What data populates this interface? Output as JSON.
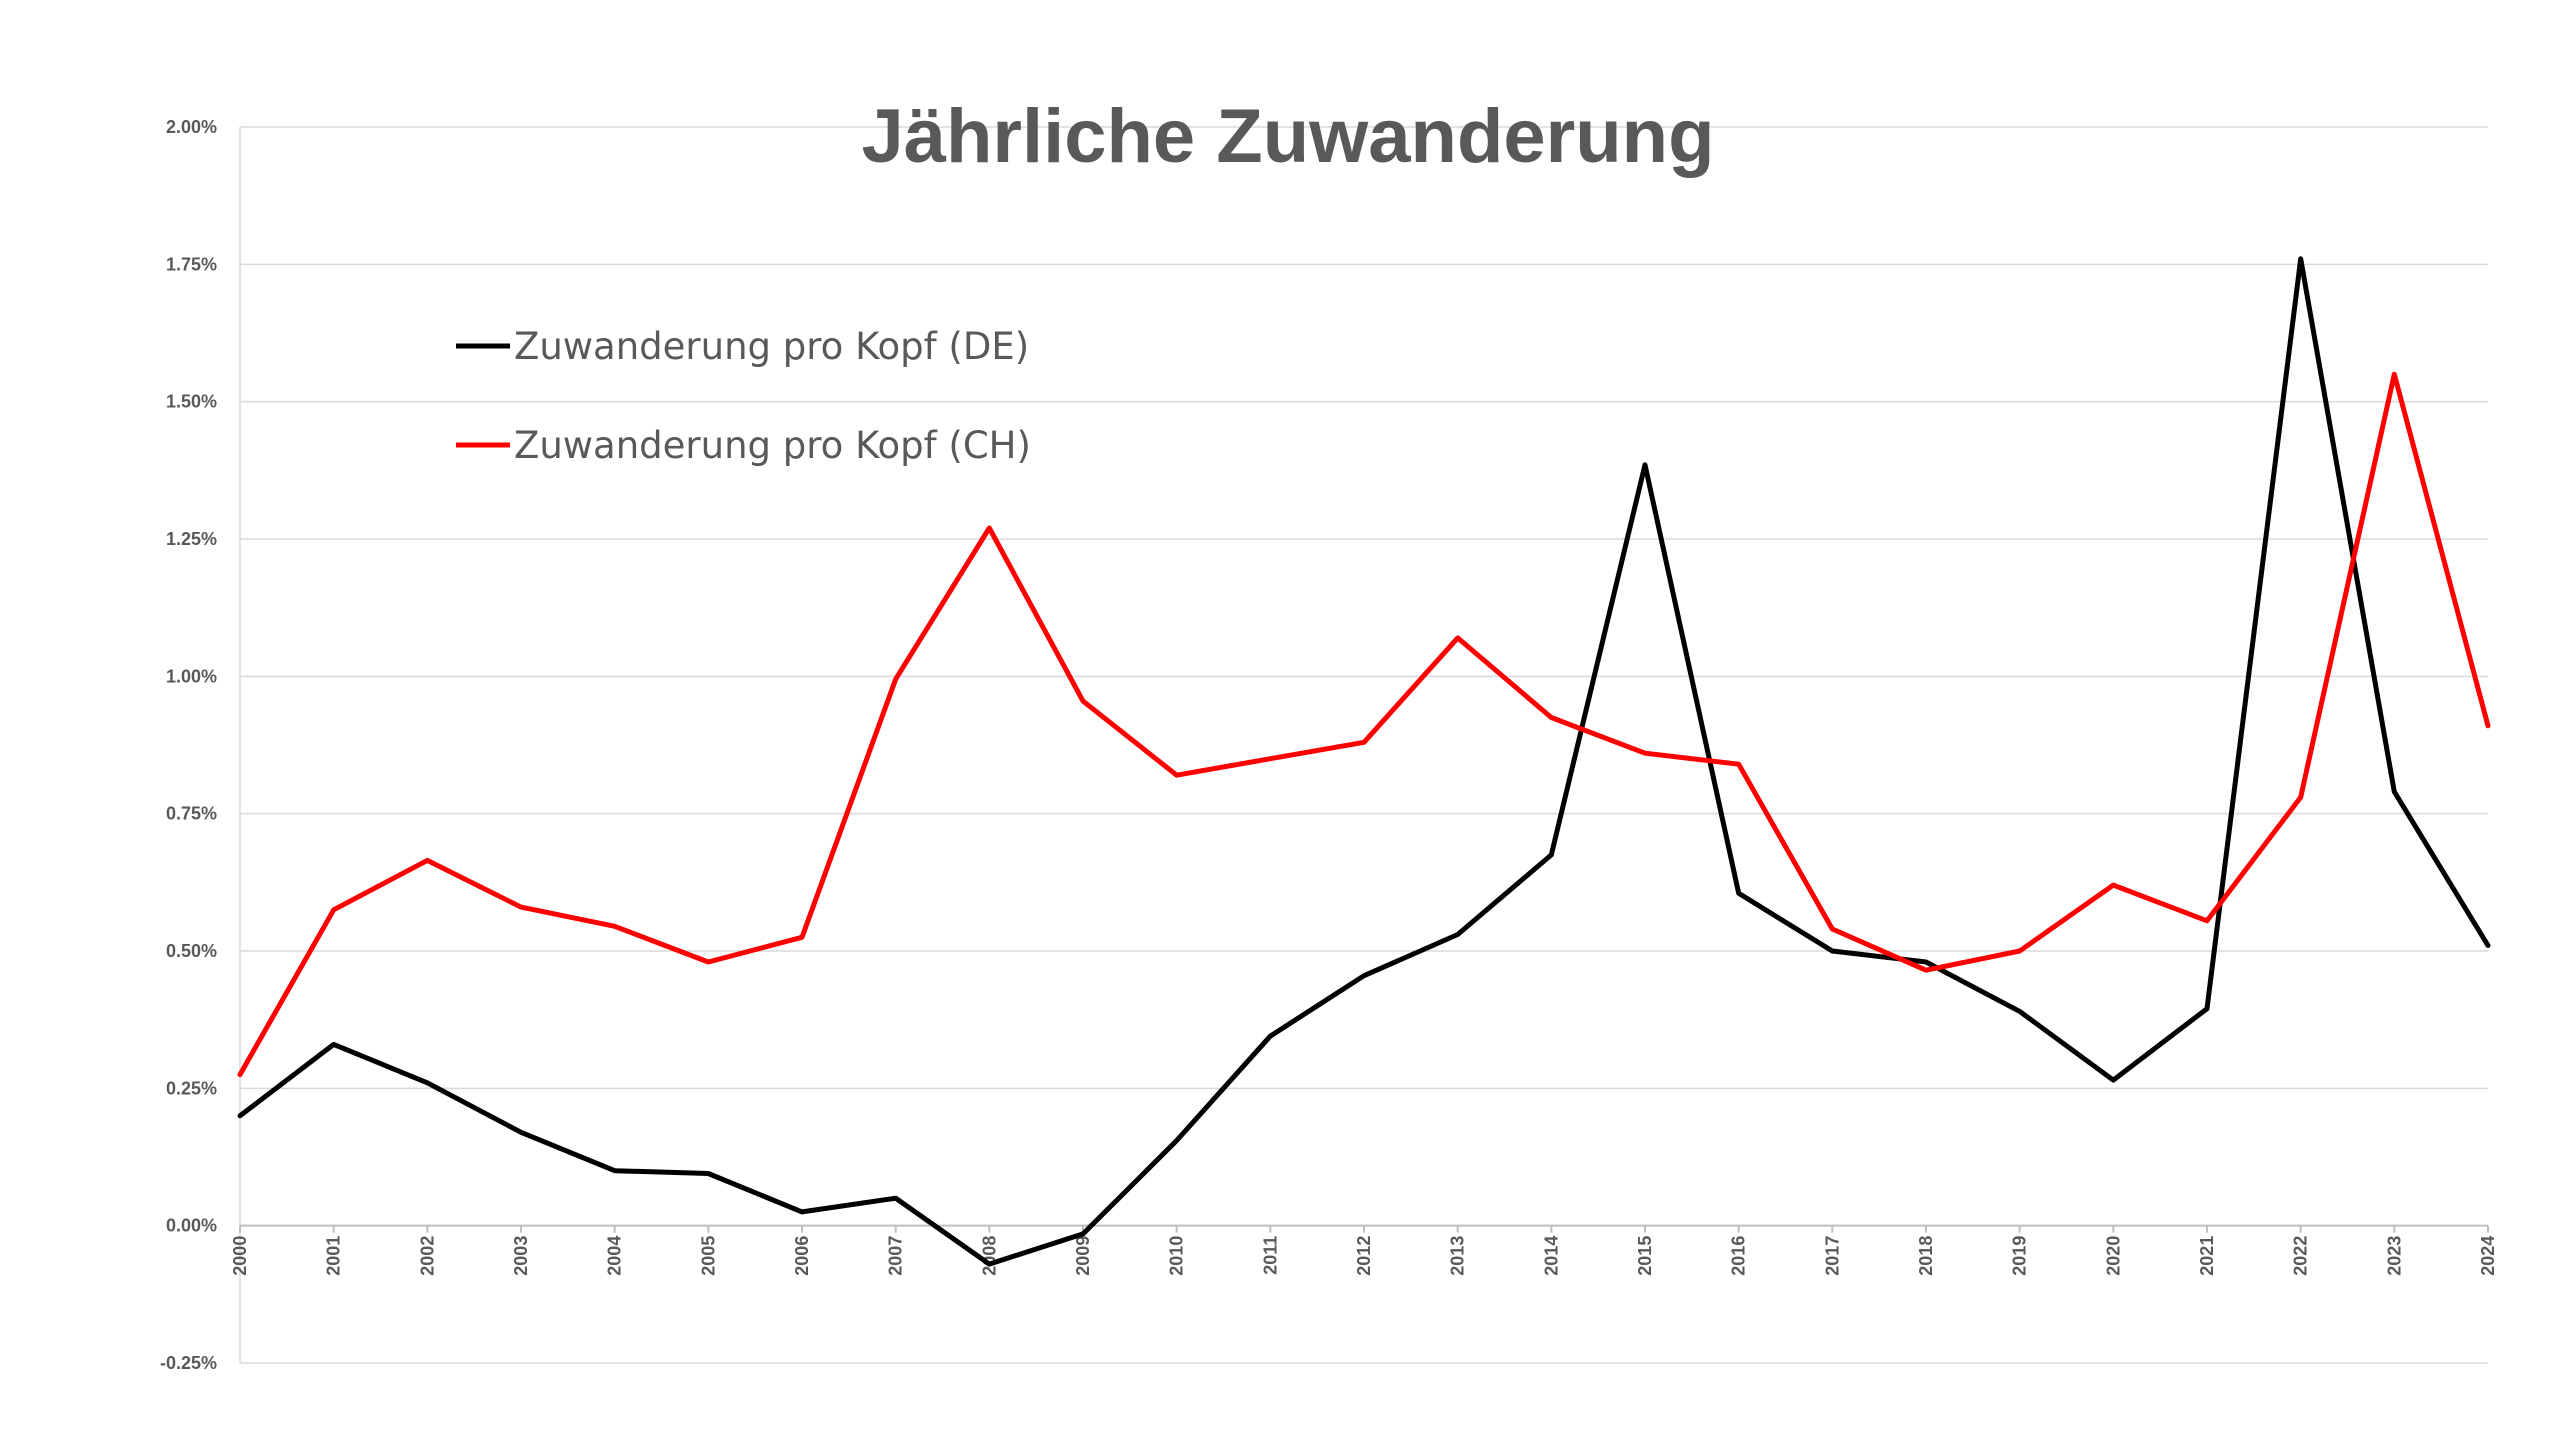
{
  "chart_data": {
    "type": "line",
    "title": "Jährliche Zuwanderung",
    "xlabel": "",
    "ylabel": "",
    "x": [
      "2000",
      "2001",
      "2002",
      "2003",
      "2004",
      "2005",
      "2006",
      "2007",
      "2008",
      "2009",
      "2010",
      "2011",
      "2012",
      "2013",
      "2014",
      "2015",
      "2016",
      "2017",
      "2018",
      "2019",
      "2020",
      "2021",
      "2022",
      "2023",
      "2024"
    ],
    "yticks": [
      "2.00%",
      "1.75%",
      "1.50%",
      "1.25%",
      "1.00%",
      "0.75%",
      "0.50%",
      "0.25%",
      "0.00%",
      "-0.25%"
    ],
    "ylim": [
      -0.25,
      2.0
    ],
    "yunit": "%",
    "grid": true,
    "legend_position": "top-left",
    "series": [
      {
        "name": "Zuwanderung pro Kopf (DE)",
        "color": "#000000",
        "values": [
          0.2,
          0.33,
          0.26,
          0.17,
          0.1,
          0.095,
          0.025,
          0.05,
          -0.07,
          -0.015,
          0.155,
          0.345,
          0.455,
          0.53,
          0.675,
          1.385,
          0.605,
          0.5,
          0.48,
          0.39,
          0.265,
          0.395,
          1.76,
          0.79,
          0.51
        ]
      },
      {
        "name": "Zuwanderung pro Kopf (CH)",
        "color": "#ff0000",
        "values": [
          0.275,
          0.575,
          0.665,
          0.58,
          0.545,
          0.48,
          0.525,
          0.995,
          1.27,
          0.955,
          0.82,
          0.85,
          0.88,
          1.07,
          0.925,
          0.86,
          0.84,
          0.54,
          0.465,
          0.5,
          0.62,
          0.555,
          0.78,
          1.55,
          0.91
        ]
      }
    ]
  }
}
